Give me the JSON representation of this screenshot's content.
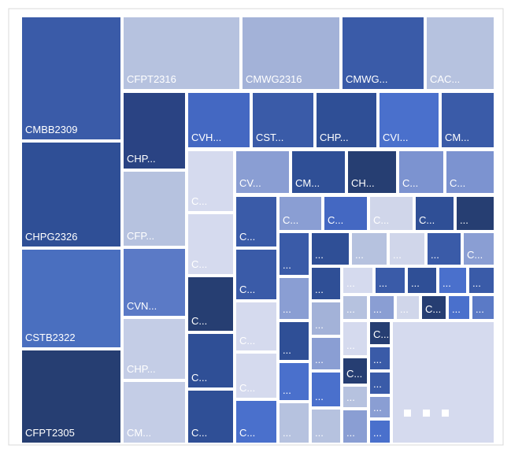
{
  "tiles": [
    {
      "label": "CMBB2309",
      "color": "#3a5ba8"
    },
    {
      "label": "CHPG2326",
      "color": "#2f4f96"
    },
    {
      "label": "CSTB2322",
      "color": "#4a6fbf"
    },
    {
      "label": "CFPT2305",
      "color": "#263e72"
    },
    {
      "label": "CFPT2316",
      "color": "#b6c2df"
    },
    {
      "label": "CMWG2316",
      "color": "#a3b2d8"
    },
    {
      "label": "CMWG...",
      "color": "#3a5ba8"
    },
    {
      "label": "CAC...",
      "color": "#b6c2df"
    },
    {
      "label": "CHP...",
      "color": "#2a4383"
    },
    {
      "label": "CFP...",
      "color": "#b6c2df"
    },
    {
      "label": "CVN...",
      "color": "#5b7ac6"
    },
    {
      "label": "CHP...",
      "color": "#c4cde6"
    },
    {
      "label": "CM...",
      "color": "#c4cde6"
    },
    {
      "label": "CVH...",
      "color": "#4468c2"
    },
    {
      "label": "CST...",
      "color": "#3a5ba8"
    },
    {
      "label": "CHP...",
      "color": "#2f4f96"
    },
    {
      "label": "CVI...",
      "color": "#4a70cc"
    },
    {
      "label": "CM...",
      "color": "#3a5ba8"
    },
    {
      "label": "C...",
      "color": "#d5daee"
    },
    {
      "label": "C...",
      "color": "#d5daee"
    },
    {
      "label": "C...",
      "color": "#263e72"
    },
    {
      "label": "C...",
      "color": "#2f4f96"
    },
    {
      "label": "C...",
      "color": "#2f4f96"
    },
    {
      "label": "CV...",
      "color": "#8a9ed3"
    },
    {
      "label": "CM...",
      "color": "#2f4f96"
    },
    {
      "label": "CH...",
      "color": "#263e72"
    },
    {
      "label": "C...",
      "color": "#7c93d0"
    },
    {
      "label": "C...",
      "color": "#7c93d0"
    },
    {
      "label": "C...",
      "color": "#3a5ba8"
    },
    {
      "label": "C...",
      "color": "#3a5ba8"
    },
    {
      "label": "C...",
      "color": "#d5daee"
    },
    {
      "label": "C...",
      "color": "#d5daee"
    },
    {
      "label": "C...",
      "color": "#4a70cc"
    },
    {
      "label": "C...",
      "color": "#8a9ed3"
    },
    {
      "label": "C...",
      "color": "#4468c2"
    },
    {
      "label": "C...",
      "color": "#d0d6ea"
    },
    {
      "label": "C...",
      "color": "#2f4f96"
    },
    {
      "label": "...",
      "color": "#263e72"
    },
    {
      "label": "...",
      "color": "#3a5ba8"
    },
    {
      "label": "...",
      "color": "#8a9ed3"
    },
    {
      "label": "...",
      "color": "#2f4f96"
    },
    {
      "label": "...",
      "color": "#4a70cc"
    },
    {
      "label": "...",
      "color": "#b6c2df"
    },
    {
      "label": "...",
      "color": "#2f4f96"
    },
    {
      "label": "...",
      "color": "#b6c2df"
    },
    {
      "label": "...",
      "color": "#d0d6ea"
    },
    {
      "label": "...",
      "color": "#3a5ba8"
    },
    {
      "label": "C...",
      "color": "#8a9ed3"
    },
    {
      "label": "...",
      "color": "#2f4f96"
    },
    {
      "label": "...",
      "color": "#a3b2d8"
    },
    {
      "label": "...",
      "color": "#8a9ed3"
    },
    {
      "label": "...",
      "color": "#4a70cc"
    },
    {
      "label": "...",
      "color": "#b6c2df"
    },
    {
      "label": "...",
      "color": "#d5daee"
    },
    {
      "label": "...",
      "color": "#3a5ba8"
    },
    {
      "label": "...",
      "color": "#2f4f96"
    },
    {
      "label": "...",
      "color": "#4a70cc"
    },
    {
      "label": "...",
      "color": "#3a5ba8"
    },
    {
      "label": "...",
      "color": "#b6c2df"
    },
    {
      "label": "...",
      "color": "#8a9ed3"
    },
    {
      "label": "...",
      "color": "#d0d6ea"
    },
    {
      "label": "C...",
      "color": "#263e72"
    },
    {
      "label": "...",
      "color": "#4a70cc"
    },
    {
      "label": "...",
      "color": "#5b7ac6"
    },
    {
      "label": "...",
      "color": "#d5daee"
    },
    {
      "label": "C...",
      "color": "#263e72"
    },
    {
      "label": "...",
      "color": "#b6c2df"
    },
    {
      "label": "...",
      "color": "#8a9ed3"
    },
    {
      "label": "C...",
      "color": "#263e72"
    },
    {
      "label": "...",
      "color": "#3a5ba8"
    },
    {
      "label": "...",
      "color": "#3a5ba8"
    },
    {
      "label": "...",
      "color": "#8a9ed3"
    },
    {
      "label": "...",
      "color": "#4a70cc"
    },
    {
      "label": "",
      "color": "#d5daee"
    }
  ]
}
